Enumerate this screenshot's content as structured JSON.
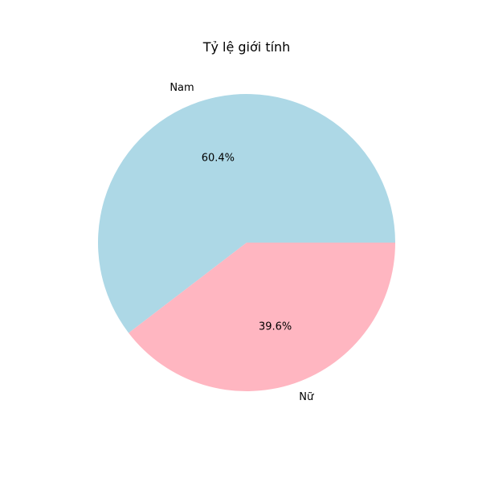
{
  "chart_data": {
    "type": "pie",
    "title": "Tỷ lệ giới tính",
    "start_angle_deg": 0,
    "direction": "counterclockwise",
    "slices": [
      {
        "label": "Nam",
        "value": 60.4,
        "pct_text": "60.4%",
        "color": "#add8e6"
      },
      {
        "label": "Nữ",
        "value": 39.6,
        "pct_text": "39.6%",
        "color": "#ffb6c1"
      }
    ]
  }
}
